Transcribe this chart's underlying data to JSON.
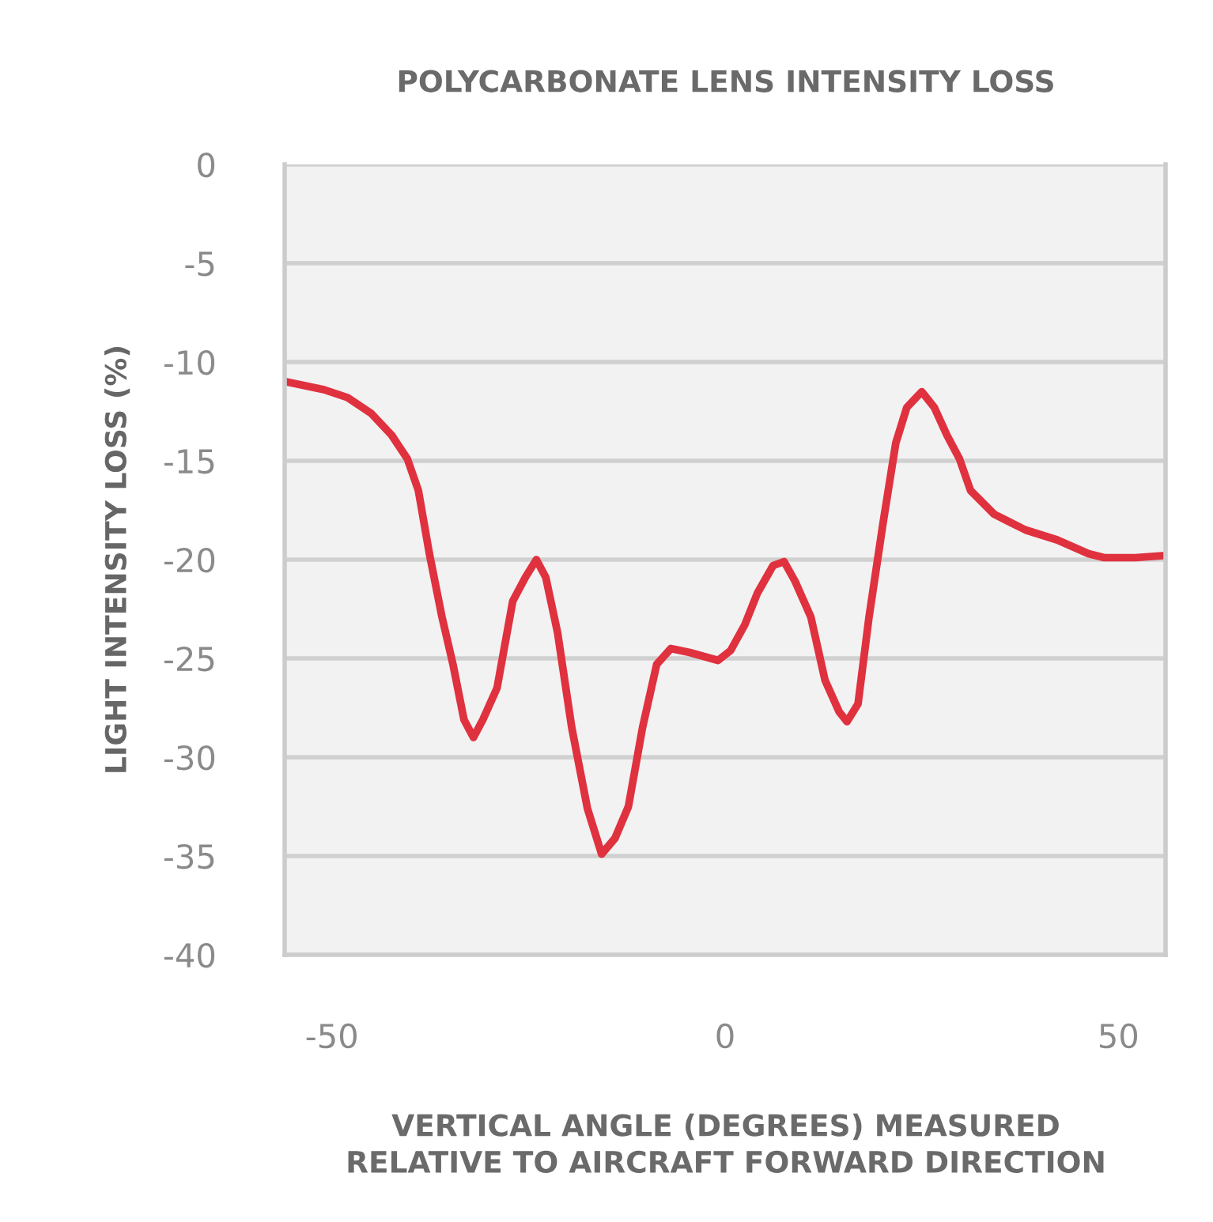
{
  "chart_data": {
    "type": "line",
    "title": "POLYCARBONATE LENS INTENSITY LOSS",
    "xlabel": "VERTICAL ANGLE (DEGREES) MEASURED\nRELATIVE TO AIRCRAFT FORWARD DIRECTION",
    "ylabel": "LIGHT INTENSITY LOSS (%)",
    "x": [
      -55.8,
      -51,
      -48,
      -45,
      -42.4,
      -40.4,
      -39,
      -37.6,
      -36,
      -34.6,
      -33.2,
      -32,
      -30.8,
      -29,
      -27,
      -25.4,
      -24,
      -22.8,
      -21.3,
      -19.5,
      -17.5,
      -15.7,
      -14,
      -12.3,
      -10.5,
      -8.7,
      -6.9,
      -4.5,
      -0.9,
      0.7,
      2.5,
      4.1,
      6.1,
      7.5,
      8.9,
      10.9,
      12.7,
      14.5,
      15.5,
      16.9,
      18.3,
      20.1,
      21.7,
      23.1,
      25,
      26.6,
      28.2,
      29.8,
      31.2,
      34.2,
      38.2,
      42.2,
      46.2,
      48.2,
      52.2,
      55.6
    ],
    "series": [
      {
        "color": "#e0313f",
        "values": [
          -11.0,
          -11.4,
          -11.8,
          -12.6,
          -13.7,
          -14.9,
          -16.5,
          -19.7,
          -22.9,
          -25.3,
          -28.1,
          -29,
          -28.1,
          -26.5,
          -22.1,
          -20.9,
          -20,
          -20.9,
          -23.7,
          -28.5,
          -32.6,
          -34.9,
          -34.1,
          -32.5,
          -28.5,
          -25.3,
          -24.5,
          -24.7,
          -25.1,
          -24.6,
          -23.3,
          -21.7,
          -20.3,
          -20.1,
          -21.1,
          -22.9,
          -26.1,
          -27.7,
          -28.2,
          -27.3,
          -22.9,
          -18.1,
          -14.1,
          -12.3,
          -11.5,
          -12.3,
          -13.7,
          -14.9,
          -16.5,
          -17.7,
          -18.5,
          -19,
          -19.7,
          -19.9,
          -19.9,
          -19.8
        ]
      }
    ],
    "xlim": [
      -56,
      56
    ],
    "ylim": [
      -40,
      0
    ],
    "xticks": [
      -50,
      0,
      50
    ],
    "yticks": [
      0,
      -5,
      -10,
      -15,
      -20,
      -25,
      -30,
      -35,
      -40
    ],
    "grid": "y",
    "legend": false,
    "marker": "none",
    "line_style": "solid"
  }
}
